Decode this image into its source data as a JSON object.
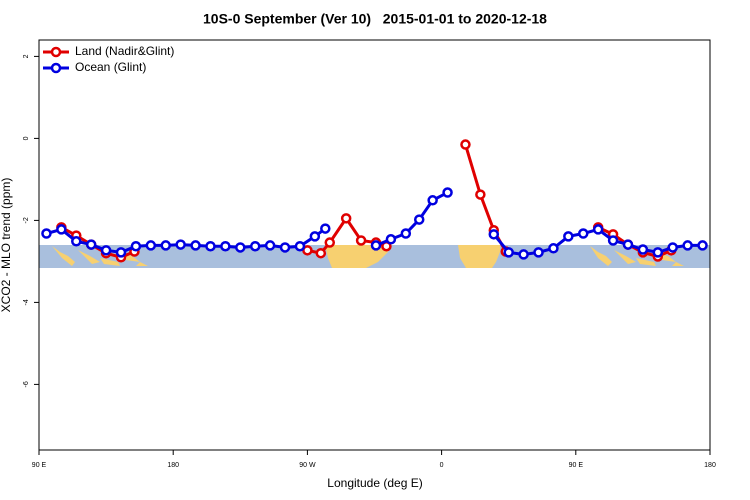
{
  "chart_data": {
    "type": "line",
    "title": "10S-0 September (Ver 10)   2015-01-01 to 2020-12-18",
    "x_label": "Longitude (deg E)",
    "y_label": "XCO2 - MLO trend (ppm)",
    "xlim": [
      90,
      540
    ],
    "xticks": [
      {
        "value": 90,
        "label": "90 E"
      },
      {
        "value": 180,
        "label": "180"
      },
      {
        "value": 270,
        "label": "90 W"
      },
      {
        "value": 360,
        "label": "0"
      },
      {
        "value": 450,
        "label": "90 E"
      },
      {
        "value": 540,
        "label": "180"
      }
    ],
    "ylim": [
      -7.6,
      2.4
    ],
    "yticks": [
      -6,
      -4,
      -2,
      0,
      2
    ],
    "legend": "top-left",
    "series": [
      {
        "name": "Land (Nadir&Glint)",
        "color": "#e00000",
        "x": [
          105,
          115,
          125,
          135,
          145,
          154,
          null,
          270,
          279,
          285,
          296,
          306,
          316,
          323,
          null,
          376,
          386,
          395,
          403,
          null,
          465,
          475,
          485,
          495,
          505,
          514
        ],
        "values": [
          -2.17,
          -2.37,
          -2.59,
          -2.8,
          -2.9,
          -2.76,
          null,
          -2.73,
          -2.8,
          -2.54,
          -1.95,
          -2.49,
          -2.54,
          -2.63,
          null,
          -0.15,
          -1.37,
          -2.24,
          -2.76,
          null,
          -2.17,
          -2.34,
          -2.59,
          -2.78,
          -2.88,
          -2.73
        ]
      },
      {
        "name": "Ocean (Glint)",
        "color": "#0000e0",
        "x": [
          95,
          105,
          115,
          125,
          135,
          145,
          155,
          165,
          175,
          185,
          195,
          205,
          215,
          225,
          235,
          245,
          255,
          265,
          275,
          282,
          null,
          316,
          326,
          336,
          345,
          354,
          364,
          null,
          395,
          405,
          415,
          425,
          435,
          445,
          455,
          465,
          475,
          485,
          495,
          505,
          515,
          525,
          535
        ],
        "values": [
          -2.32,
          -2.22,
          -2.51,
          -2.59,
          -2.73,
          -2.78,
          -2.63,
          -2.61,
          -2.61,
          -2.59,
          -2.61,
          -2.63,
          -2.63,
          -2.66,
          -2.63,
          -2.61,
          -2.66,
          -2.63,
          -2.39,
          -2.2,
          null,
          -2.61,
          -2.46,
          -2.32,
          -1.98,
          -1.51,
          -1.32,
          null,
          -2.34,
          -2.78,
          -2.83,
          -2.78,
          -2.68,
          -2.39,
          -2.32,
          -2.22,
          -2.49,
          -2.59,
          -2.71,
          -2.78,
          -2.66,
          -2.61,
          -2.61
        ]
      }
    ]
  }
}
